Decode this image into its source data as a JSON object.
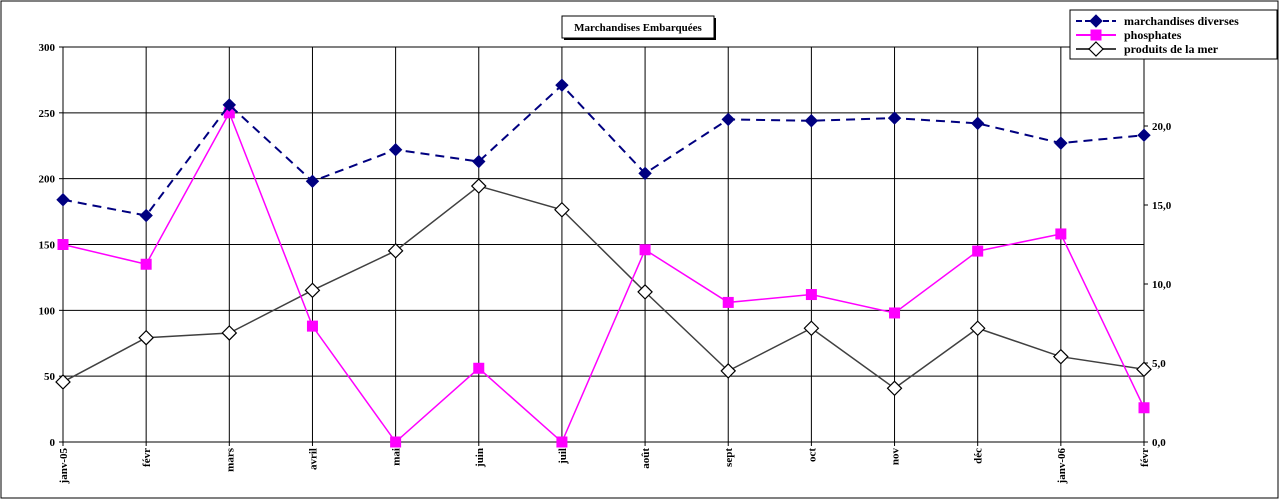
{
  "chart_data": {
    "type": "line",
    "title": "Marchandises Embarquées",
    "categories": [
      "janv-05",
      "févr",
      "mars",
      "avril",
      "mai",
      "juin",
      "juil",
      "août",
      "sept",
      "oct",
      "nov",
      "déc",
      "janv-06",
      "févr"
    ],
    "left_axis": {
      "min": 0,
      "max": 300,
      "ticks": [
        0,
        50,
        100,
        150,
        200,
        250,
        300
      ]
    },
    "right_axis": {
      "min": 0,
      "max": 25,
      "ticks": [
        "0,0",
        "5,0",
        "10,0",
        "15,0",
        "20,0"
      ],
      "tick_values": [
        0,
        5,
        10,
        15,
        20
      ]
    },
    "grid": true,
    "legend_position": "top-right",
    "series": [
      {
        "name": "marchandises diverses",
        "axis": "left",
        "color": "#000080",
        "dash": "dashed",
        "marker": "filled-diamond",
        "values": [
          184,
          172,
          256,
          198,
          222,
          213,
          271,
          204,
          245,
          244,
          246,
          242,
          227,
          233
        ]
      },
      {
        "name": "phosphates",
        "axis": "left",
        "color": "#ff00ff",
        "dash": "solid",
        "marker": "filled-square",
        "values": [
          150,
          135,
          250,
          88,
          0,
          56,
          0,
          146,
          106,
          112,
          98,
          145,
          158,
          26
        ]
      },
      {
        "name": "produits de la mer",
        "axis": "right",
        "color": "#404040",
        "dash": "solid",
        "marker": "open-diamond",
        "values": [
          3.8,
          6.6,
          6.9,
          9.6,
          12.1,
          16.2,
          14.7,
          9.5,
          4.5,
          7.2,
          3.4,
          7.2,
          5.4,
          4.6
        ]
      }
    ]
  }
}
